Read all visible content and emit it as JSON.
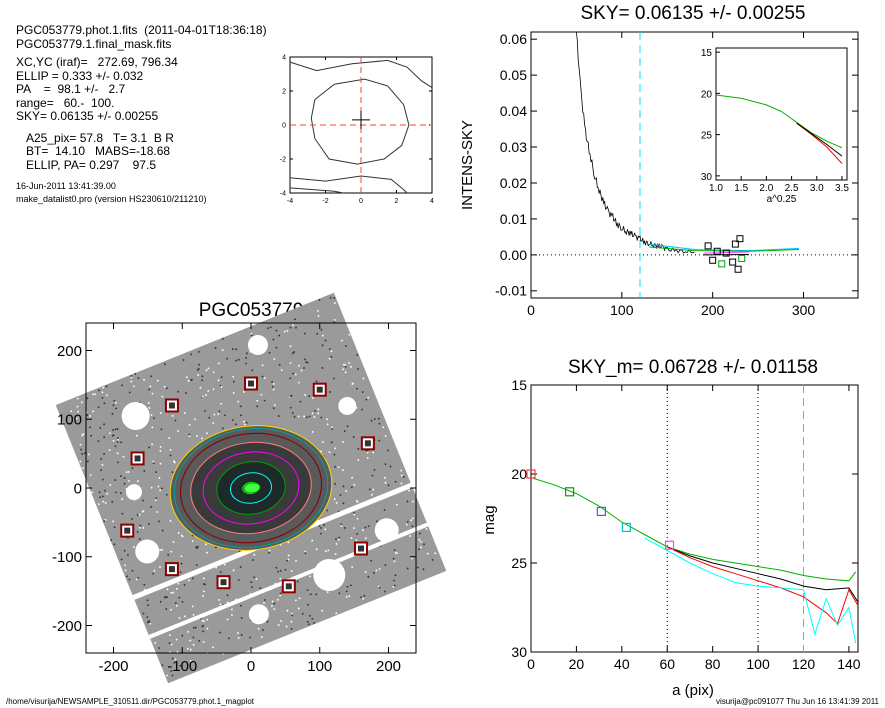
{
  "info": {
    "line1": "PGC053779.phot.1.fits  (2011-04-01T18:36:18)",
    "line2": "PGC053779.1.final_mask.fits",
    "line3": "XC,YC (iraf)=   272.69, 796.34",
    "line4": "ELLIP = 0.333 +/- 0.032",
    "line5": "PA    =  98.1 +/-   2.7",
    "line6": "range=   60.-  100.",
    "line7": "SKY= 0.06135 +/- 0.00255",
    "line8": "A25_pix= 57.8   T= 3.1  B R",
    "line9": "BT=  14.10   MABS=-18.68",
    "line10": "ELLIP, PA= 0.297    97.5",
    "date": "16-Jun-2011 13:41:39.00",
    "program": "make_datalist0.pro (version HS230610/211210)"
  },
  "footer": {
    "left": "/home/visurija/NEWSAMPLE_310511.dir/PGC053779.phot.1_magplot",
    "right": "visurija@pc091077  Thu Jun 16 13:41:39 2011"
  },
  "colors": {
    "sky_line": "#00e0ff",
    "mask_red": "#ff0000",
    "box_dark_red": "#8b0000"
  },
  "chart_data": [
    {
      "id": "contour",
      "type": "contour",
      "title": "",
      "xlim": [
        -4,
        4
      ],
      "ylim": [
        -4,
        4
      ],
      "xticks": [
        -4,
        -2,
        0,
        2,
        4
      ],
      "yticks": [
        -4,
        -2,
        0,
        2,
        4
      ],
      "center_cross": [
        0,
        0.3
      ],
      "dashed_red_lines": {
        "x": 0,
        "y": 0
      },
      "contours": [
        [
          [
            -2.6,
            1.5
          ],
          [
            -1.5,
            2.4
          ],
          [
            0.2,
            2.7
          ],
          [
            1.5,
            2.3
          ],
          [
            2.4,
            1.2
          ],
          [
            2.7,
            0
          ],
          [
            2.3,
            -1.2
          ],
          [
            1.3,
            -2.0
          ],
          [
            -0.2,
            -2.3
          ],
          [
            -1.8,
            -2.0
          ],
          [
            -2.6,
            -0.8
          ],
          [
            -2.8,
            0.4
          ],
          [
            -2.6,
            1.5
          ]
        ],
        [
          [
            -4,
            3.7
          ],
          [
            -2.5,
            3.2
          ],
          [
            -0.5,
            3.6
          ],
          [
            1.5,
            3.8
          ],
          [
            2.6,
            3.4
          ],
          [
            3.4,
            2.6
          ],
          [
            4,
            2.2
          ]
        ],
        [
          [
            -4,
            -3.1
          ],
          [
            -2,
            -3.3
          ],
          [
            0,
            -3.0
          ],
          [
            1.7,
            -3.2
          ],
          [
            2.4,
            -3.8
          ],
          [
            2.6,
            -4
          ]
        ],
        [
          [
            -4,
            -3.7
          ],
          [
            -1.5,
            -3.9
          ],
          [
            -1,
            -4
          ]
        ]
      ]
    },
    {
      "id": "sky",
      "type": "line",
      "title": "SKY= 0.06135 +/- 0.00255",
      "xlabel": "",
      "ylabel": "INTENS-SKY",
      "xlim": [
        0,
        360
      ],
      "ylim": [
        -0.012,
        0.062
      ],
      "xticks": [
        0,
        100,
        200,
        300
      ],
      "yticks": [
        -0.01,
        0.0,
        0.01,
        0.02,
        0.03,
        0.04,
        0.05,
        0.06
      ],
      "ytick_labels": [
        "-0.01",
        "0.00",
        "0.01",
        "0.02",
        "0.03",
        "0.04",
        "0.05",
        "0.06"
      ],
      "vline_cyan": 120,
      "hline_dotted": 0,
      "profile": {
        "x": [
          50,
          55,
          60,
          65,
          70,
          75,
          80,
          85,
          90,
          95,
          100,
          105,
          110,
          115,
          120,
          125,
          130,
          135,
          140,
          145,
          150,
          160,
          170,
          180
        ],
        "y": [
          0.062,
          0.045,
          0.034,
          0.028,
          0.022,
          0.018,
          0.0145,
          0.012,
          0.0105,
          0.0085,
          0.0075,
          0.0065,
          0.006,
          0.005,
          0.0045,
          0.0035,
          0.0032,
          0.0028,
          0.0025,
          0.0022,
          0.0015,
          0.0012,
          0.001,
          0.0008
        ]
      },
      "tail_lines": [
        {
          "name": "",
          "color": "#00c8ff",
          "x": [
            130,
            180,
            240,
            295
          ],
          "y": [
            0.003,
            0.0015,
            0.0012,
            0.0018
          ]
        },
        {
          "name": "",
          "color": "#00b000",
          "x": [
            130,
            180,
            240,
            295
          ],
          "y": [
            0.0022,
            0.0012,
            0.001,
            0.0015
          ]
        },
        {
          "name": "",
          "color": "#ff40ff",
          "x": [
            190,
            240
          ],
          "y": [
            0.0005,
            0.0008
          ]
        },
        {
          "name": "",
          "color": "#000000",
          "x": [
            190,
            240
          ],
          "y": [
            0.0,
            0.0001
          ]
        }
      ],
      "boxes": [
        {
          "x": 195,
          "y": 0.0025,
          "color": "#000000"
        },
        {
          "x": 200,
          "y": -0.0015,
          "color": "#000000"
        },
        {
          "x": 205,
          "y": 0.001,
          "color": "#000000"
        },
        {
          "x": 210,
          "y": -0.0025,
          "color": "#00a000"
        },
        {
          "x": 215,
          "y": 0.0005,
          "color": "#000000"
        },
        {
          "x": 222,
          "y": -0.002,
          "color": "#000000"
        },
        {
          "x": 228,
          "y": -0.004,
          "color": "#000000"
        },
        {
          "x": 230,
          "y": 0.0045,
          "color": "#000000"
        },
        {
          "x": 232,
          "y": -0.001,
          "color": "#00a000"
        },
        {
          "x": 225,
          "y": 0.003,
          "color": "#000000"
        }
      ],
      "inset": {
        "xlim": [
          1.0,
          3.6
        ],
        "ylim": [
          30.5,
          14.5
        ],
        "xticks": [
          1.0,
          1.5,
          2.0,
          2.5,
          3.0,
          3.5
        ],
        "yticks": [
          15,
          20,
          25,
          30
        ],
        "xlabel": "a^0.25",
        "series": [
          {
            "name": "",
            "color": "#00b000",
            "x": [
              1.0,
              1.5,
              2.0,
              2.3,
              2.6,
              2.9,
              3.2,
              3.5
            ],
            "y": [
              20.2,
              20.6,
              21.4,
              22.2,
              23.5,
              24.8,
              25.8,
              26.6
            ]
          },
          {
            "name": "",
            "color": "#ff0000",
            "x": [
              2.6,
              2.9,
              3.2,
              3.5
            ],
            "y": [
              23.6,
              25.0,
              26.5,
              28.5
            ]
          },
          {
            "name": "",
            "color": "#000000",
            "x": [
              2.6,
              2.9,
              3.2,
              3.5
            ],
            "y": [
              23.6,
              24.9,
              26.2,
              27.6
            ]
          }
        ]
      }
    },
    {
      "id": "image",
      "type": "image",
      "title": "PGC053779",
      "xlim": [
        -240,
        240
      ],
      "ylim": [
        -240,
        240
      ],
      "xticks": [
        -200,
        -100,
        0,
        100,
        200
      ],
      "yticks": [
        -200,
        -100,
        0,
        100,
        200
      ],
      "stars_boxed": [
        {
          "x": -115,
          "y": 120
        },
        {
          "x": 0,
          "y": 152
        },
        {
          "x": 100,
          "y": 143
        },
        {
          "x": -165,
          "y": 43
        },
        {
          "x": 170,
          "y": 65
        },
        {
          "x": -180,
          "y": -62
        },
        {
          "x": 160,
          "y": -88
        },
        {
          "x": -115,
          "y": -118
        },
        {
          "x": -40,
          "y": -137
        },
        {
          "x": 55,
          "y": -143
        }
      ],
      "ellipses": [
        {
          "a": 118,
          "b": 90,
          "color": "#ffd700"
        },
        {
          "a": 112,
          "b": 86,
          "color": "#00a0a0"
        },
        {
          "a": 103,
          "b": 79,
          "color": "#800000"
        },
        {
          "a": 88,
          "b": 66,
          "color": "#ff8080"
        },
        {
          "a": 70,
          "b": 52,
          "color": "#ff00ff"
        },
        {
          "a": 50,
          "b": 38,
          "color": "#00a000"
        },
        {
          "a": 30,
          "b": 22,
          "color": "#00ffff"
        },
        {
          "a": 12,
          "b": 8,
          "color": "#00ff00"
        }
      ]
    },
    {
      "id": "mag",
      "type": "line",
      "title": "SKY_m=  0.06728 +/- 0.01158",
      "xlabel": "a (pix)",
      "ylabel": "mag",
      "xlim": [
        0,
        144
      ],
      "ylim": [
        30,
        15
      ],
      "xticks": [
        0,
        20,
        40,
        60,
        80,
        100,
        120,
        140
      ],
      "yticks": [
        15,
        20,
        25,
        30
      ],
      "vlines_dotted": [
        60,
        100
      ],
      "vline_cyan": 120,
      "series": [
        {
          "name": "",
          "color": "#00b000",
          "x": [
            0,
            10,
            20,
            30,
            40,
            50,
            60,
            70,
            80,
            90,
            100,
            110,
            120,
            130,
            140,
            143
          ],
          "y": [
            20.2,
            20.6,
            21.1,
            21.8,
            22.7,
            23.4,
            24.1,
            24.5,
            24.8,
            25.0,
            25.2,
            25.4,
            25.7,
            25.9,
            26.0,
            25.5
          ]
        },
        {
          "name": "",
          "color": "#000000",
          "x": [
            60,
            70,
            80,
            90,
            100,
            110,
            120,
            130,
            140,
            144
          ],
          "y": [
            24.1,
            24.6,
            25.0,
            25.3,
            25.6,
            25.9,
            26.3,
            26.5,
            26.4,
            27.2
          ]
        },
        {
          "name": "",
          "color": "#ff0000",
          "x": [
            60,
            70,
            80,
            90,
            100,
            110,
            120,
            130,
            135,
            140,
            144
          ],
          "y": [
            24.1,
            24.7,
            25.2,
            25.6,
            26.0,
            26.4,
            26.9,
            27.8,
            28.4,
            26.5,
            27.4
          ]
        },
        {
          "name": "",
          "color": "#00ffff",
          "x": [
            50,
            60,
            70,
            80,
            90,
            100,
            110,
            120,
            125,
            130,
            135,
            140,
            143
          ],
          "y": [
            23.6,
            24.3,
            25.0,
            25.6,
            26.1,
            26.3,
            26.4,
            26.5,
            29.0,
            27.0,
            28.5,
            27.5,
            29.5
          ]
        }
      ],
      "boxes": [
        {
          "x": 0,
          "y": 20.0,
          "color": "#ff4040"
        },
        {
          "x": 17,
          "y": 21.0,
          "color": "#00a000"
        },
        {
          "x": 31,
          "y": 22.1,
          "color": "#4060ff"
        },
        {
          "x": 42,
          "y": 23.0,
          "color": "#00c0c0"
        },
        {
          "x": 61,
          "y": 24.0,
          "color": "#ff40ff"
        }
      ]
    }
  ]
}
